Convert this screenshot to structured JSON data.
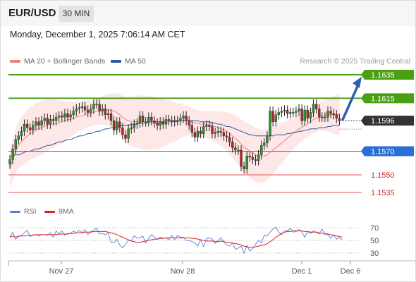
{
  "header": {
    "symbol": "EUR/USD",
    "timeframe": "30 MIN",
    "datetime": "Monday, December 1, 2025 7:06:14 AM CET",
    "credit": "Research © 2025 Trading Central"
  },
  "legend": {
    "ma20": {
      "label": "MA 20 + Bollinger Bands",
      "color": "#f08080"
    },
    "ma50": {
      "label": "MA 50",
      "color": "#2e5c9e"
    },
    "rsi": {
      "label": "RSI",
      "color": "#5b7fdb"
    },
    "rsi9": {
      "label": "9MA",
      "color": "#e02020"
    }
  },
  "chart_data": {
    "type": "candlestick",
    "x_ticks": [
      "Nov 27",
      "Nov 28",
      "Dec 1",
      "Dec 6"
    ],
    "price_levels": [
      {
        "label": "1.1635",
        "value": 1.1635,
        "kind": "resistance",
        "color": "#4aa012"
      },
      {
        "label": "1.1615",
        "value": 1.1615,
        "kind": "resistance",
        "color": "#4aa012"
      },
      {
        "label": "1.1596",
        "value": 1.1596,
        "kind": "last",
        "color": "#333333"
      },
      {
        "label": "1.1570",
        "value": 1.157,
        "kind": "pivot",
        "color": "#2a6ed8"
      },
      {
        "label": "1.1550",
        "value": 1.155,
        "kind": "support",
        "color": "#e05050"
      },
      {
        "label": "1.1535",
        "value": 1.1535,
        "kind": "support",
        "color": "#e05050"
      }
    ],
    "forecast": {
      "from": 1.1596,
      "to": 1.1635
    },
    "close": [
      1.1563,
      1.1572,
      1.158,
      1.1583,
      1.1587,
      1.1593,
      1.159,
      1.1588,
      1.1592,
      1.1595,
      1.1592,
      1.1596,
      1.1598,
      1.1593,
      1.1597,
      1.1596,
      1.1599,
      1.16,
      1.1599,
      1.1602,
      1.1599,
      1.1601,
      1.1604,
      1.1606,
      1.1607,
      1.1608,
      1.1605,
      1.1603,
      1.1606,
      1.161,
      1.161,
      1.1604,
      1.1606,
      1.1601,
      1.1602,
      1.1596,
      1.1588,
      1.1595,
      1.159,
      1.1584,
      1.1581,
      1.1589,
      1.159,
      1.1593,
      1.1594,
      1.16,
      1.1595,
      1.1595,
      1.1599,
      1.1596,
      1.1594,
      1.1592,
      1.1595,
      1.1593,
      1.1597,
      1.1596,
      1.1595,
      1.1596,
      1.1596,
      1.1598,
      1.16,
      1.1596,
      1.1592,
      1.1586,
      1.1582,
      1.1587,
      1.1585,
      1.1591,
      1.1592,
      1.1591,
      1.1585,
      1.1586,
      1.1587,
      1.1586,
      1.1583,
      1.1582,
      1.1578,
      1.1573,
      1.1571,
      1.1571,
      1.1557,
      1.1555,
      1.1566,
      1.1565,
      1.1563,
      1.1562,
      1.1567,
      1.1575,
      1.1577,
      1.1583,
      1.1604,
      1.1595,
      1.1601,
      1.1603,
      1.1604,
      1.1605,
      1.1602,
      1.1603,
      1.1603,
      1.1604,
      1.1606,
      1.1596,
      1.1605,
      1.1598,
      1.1603,
      1.161,
      1.1606,
      1.1599,
      1.1599,
      1.1599,
      1.1604,
      1.1602,
      1.1601,
      1.1598,
      1.1596
    ],
    "ma20": [
      1.1555,
      1.1563,
      1.157,
      1.1575,
      1.1578,
      1.1581,
      1.1583,
      1.1585,
      1.1586,
      1.1588,
      1.1589,
      1.159,
      1.1591,
      1.1592,
      1.1593,
      1.1593,
      1.1594,
      1.1594,
      1.1595,
      1.1596,
      1.1597,
      1.1597,
      1.1598,
      1.1599,
      1.16,
      1.16,
      1.1601,
      1.1602,
      1.1602,
      1.1603,
      1.1604,
      1.1604,
      1.1605,
      1.1605,
      1.1605,
      1.1605,
      1.1604,
      1.1603,
      1.1601,
      1.1599,
      1.1597,
      1.1596,
      1.1595,
      1.1595,
      1.1595,
      1.1595,
      1.1594,
      1.1594,
      1.1594,
      1.1594,
      1.1594,
      1.1593,
      1.1594,
      1.1594,
      1.1594,
      1.1595,
      1.1595,
      1.1595,
      1.1595,
      1.1596,
      1.1596,
      1.1596,
      1.1596,
      1.1595,
      1.1594,
      1.1594,
      1.1593,
      1.1593,
      1.1593,
      1.1592,
      1.1592,
      1.1591,
      1.159,
      1.1589,
      1.1588,
      1.1587,
      1.1585,
      1.1583,
      1.1581,
      1.1579,
      1.1576,
      1.1573,
      1.1572,
      1.157,
      1.1569,
      1.1567,
      1.1566,
      1.1566,
      1.1566,
      1.1567,
      1.1569,
      1.1571,
      1.1573,
      1.1575,
      1.1577,
      1.1579,
      1.1581,
      1.1583,
      1.1585,
      1.1587,
      1.1589,
      1.159,
      1.1592,
      1.1593,
      1.1595,
      1.1597,
      1.1598,
      1.1599,
      1.16,
      1.16,
      1.1601,
      1.1601,
      1.1601,
      1.1601,
      1.1601
    ],
    "ma50": [
      1.1565,
      1.1566,
      1.1567,
      1.1567,
      1.1568,
      1.1569,
      1.157,
      1.157,
      1.1571,
      1.1572,
      1.1572,
      1.1573,
      1.1574,
      1.1575,
      1.1575,
      1.1576,
      1.1577,
      1.1578,
      1.1578,
      1.1579,
      1.158,
      1.158,
      1.1581,
      1.1582,
      1.1583,
      1.1583,
      1.1584,
      1.1585,
      1.1585,
      1.1586,
      1.1587,
      1.1587,
      1.1588,
      1.1589,
      1.1589,
      1.159,
      1.159,
      1.1591,
      1.1591,
      1.1592,
      1.1592,
      1.1592,
      1.1593,
      1.1593,
      1.1593,
      1.1594,
      1.1594,
      1.1594,
      1.1595,
      1.1595,
      1.1595,
      1.1595,
      1.1595,
      1.1595,
      1.1596,
      1.1596,
      1.1596,
      1.1596,
      1.1596,
      1.1596,
      1.1596,
      1.1596,
      1.1596,
      1.1596,
      1.1596,
      1.1596,
      1.1595,
      1.1595,
      1.1595,
      1.1595,
      1.1594,
      1.1594,
      1.1593,
      1.1593,
      1.1592,
      1.1591,
      1.1591,
      1.159,
      1.1589,
      1.1588,
      1.1587,
      1.1586,
      1.1585,
      1.1584,
      1.1584,
      1.1583,
      1.1583,
      1.1583,
      1.1583,
      1.1583,
      1.1583,
      1.1583,
      1.1584,
      1.1584,
      1.1584,
      1.1584,
      1.1585,
      1.1585,
      1.1586,
      1.1586,
      1.1587,
      1.1587,
      1.1588,
      1.1588,
      1.1589,
      1.1589,
      1.1589,
      1.159,
      1.159,
      1.159,
      1.1591,
      1.1591,
      1.1592,
      1.1592,
      1.1592
    ],
    "rsi": {
      "ticks": [
        70,
        50,
        30
      ],
      "values": [
        55,
        63,
        52,
        56,
        58,
        62,
        66,
        56,
        59,
        59,
        57,
        59,
        59,
        58,
        62,
        55,
        65,
        60,
        65,
        58,
        61,
        61,
        65,
        62,
        66,
        62,
        67,
        59,
        64,
        66,
        69,
        60,
        61,
        59,
        62,
        47,
        46,
        52,
        43,
        38,
        44,
        50,
        49,
        57,
        54,
        54,
        57,
        46,
        53,
        59,
        55,
        52,
        55,
        53,
        54,
        51,
        58,
        51,
        58,
        55,
        55,
        50,
        50,
        48,
        46,
        41,
        51,
        40,
        53,
        54,
        52,
        45,
        50,
        54,
        48,
        43,
        41,
        46,
        36,
        38,
        41,
        30,
        42,
        33,
        37,
        44,
        50,
        46,
        58,
        57,
        63,
        68,
        71,
        63,
        59,
        65,
        65,
        69,
        63,
        64,
        67,
        63,
        55,
        64,
        61,
        65,
        63,
        60,
        68,
        59,
        59,
        53,
        59,
        52,
        54,
        51
      ],
      "ma9": [
        55,
        57,
        55,
        57,
        57,
        57,
        58,
        58,
        58,
        59,
        59,
        59,
        59,
        59,
        59,
        59,
        59,
        60,
        60,
        60,
        60,
        61,
        61,
        62,
        62,
        62,
        63,
        63,
        63,
        64,
        64,
        64,
        64,
        64,
        63,
        62,
        61,
        59,
        57,
        55,
        53,
        51,
        49,
        48,
        47,
        47,
        48,
        49,
        50,
        51,
        52,
        52,
        53,
        53,
        54,
        54,
        54,
        54,
        54,
        54,
        54,
        54,
        54,
        53,
        53,
        52,
        51,
        50,
        49,
        49,
        49,
        48,
        48,
        49,
        48,
        47,
        47,
        46,
        45,
        44,
        43,
        41,
        40,
        39,
        39,
        40,
        41,
        42,
        43,
        45,
        48,
        51,
        55,
        58,
        61,
        63,
        64,
        64,
        65,
        65,
        65,
        65,
        64,
        64,
        63,
        63,
        63,
        62,
        61,
        61,
        60,
        59,
        58,
        57,
        56,
        55
      ]
    },
    "ylim": [
      1.1525,
      1.1645
    ]
  }
}
